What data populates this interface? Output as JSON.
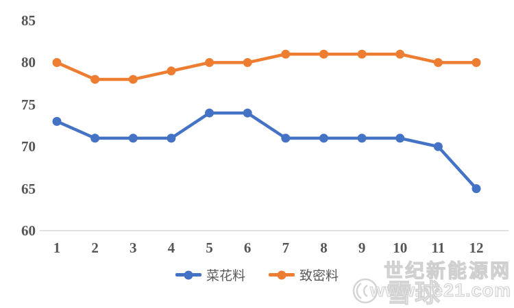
{
  "chart_data": {
    "type": "line",
    "title": "",
    "xlabel": "",
    "ylabel": "",
    "categories": [
      "1",
      "2",
      "3",
      "4",
      "5",
      "6",
      "7",
      "8",
      "9",
      "10",
      "11",
      "12"
    ],
    "series": [
      {
        "name": "菜花料",
        "color": "#4472C4",
        "values": [
          73,
          71,
          71,
          71,
          74,
          74,
          71,
          71,
          71,
          71,
          70,
          65
        ]
      },
      {
        "name": "致密料",
        "color": "#ED7D31",
        "values": [
          80,
          78,
          78,
          79,
          80,
          80,
          81,
          81,
          81,
          81,
          80,
          80
        ]
      }
    ],
    "yticks": [
      60,
      65,
      70,
      75,
      80,
      85
    ],
    "ylim": [
      60,
      85
    ],
    "grid": false,
    "legend_position": "bottom",
    "axis_line_color": "#d6d6d6",
    "tick_text_color": "#555555"
  },
  "watermark": {
    "site_name": "世纪新能源网",
    "site_url": "www.ne21.com",
    "brand": "雪球",
    "color": "#d0d0d0"
  }
}
